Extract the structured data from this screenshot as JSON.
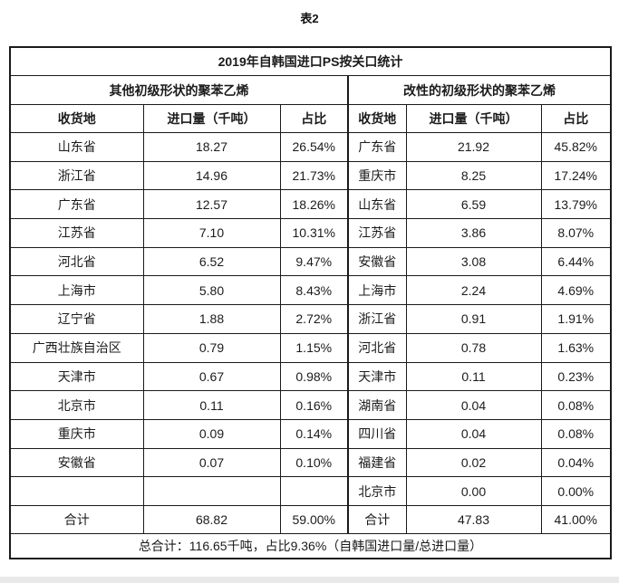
{
  "page": {
    "caption": "表2"
  },
  "colors": {
    "border": "#1a1a1a",
    "text": "#1b1b1b",
    "background": "#ffffff",
    "bottom_strip": "#e9e9e9"
  },
  "table": {
    "title": "2019年自韩国进口PS按关口统计",
    "group_headers": [
      "其他初级形状的聚苯乙烯",
      "改性的初级形状的聚苯乙烯"
    ],
    "column_headers": [
      "收货地",
      "进口量（千吨）",
      "占比",
      "收货地",
      "进口量（千吨）",
      "占比"
    ],
    "rows": [
      [
        "山东省",
        "18.27",
        "26.54%",
        "广东省",
        "21.92",
        "45.82%"
      ],
      [
        "浙江省",
        "14.96",
        "21.73%",
        "重庆市",
        "8.25",
        "17.24%"
      ],
      [
        "广东省",
        "12.57",
        "18.26%",
        "山东省",
        "6.59",
        "13.79%"
      ],
      [
        "江苏省",
        "7.10",
        "10.31%",
        "江苏省",
        "3.86",
        "8.07%"
      ],
      [
        "河北省",
        "6.52",
        "9.47%",
        "安徽省",
        "3.08",
        "6.44%"
      ],
      [
        "上海市",
        "5.80",
        "8.43%",
        "上海市",
        "2.24",
        "4.69%"
      ],
      [
        "辽宁省",
        "1.88",
        "2.72%",
        "浙江省",
        "0.91",
        "1.91%"
      ],
      [
        "广西壮族自治区",
        "0.79",
        "1.15%",
        "河北省",
        "0.78",
        "1.63%"
      ],
      [
        "天津市",
        "0.67",
        "0.98%",
        "天津市",
        "0.11",
        "0.23%"
      ],
      [
        "北京市",
        "0.11",
        "0.16%",
        "湖南省",
        "0.04",
        "0.08%"
      ],
      [
        "重庆市",
        "0.09",
        "0.14%",
        "四川省",
        "0.04",
        "0.08%"
      ],
      [
        "安徽省",
        "0.07",
        "0.10%",
        "福建省",
        "0.02",
        "0.04%"
      ],
      [
        "",
        "",
        "",
        "北京市",
        "0.00",
        "0.00%"
      ]
    ],
    "total_row": [
      "合计",
      "68.82",
      "59.00%",
      "合计",
      "47.83",
      "41.00%"
    ],
    "footer": "总合计：116.65千吨，占比9.36%（自韩国进口量/总进口量）"
  }
}
